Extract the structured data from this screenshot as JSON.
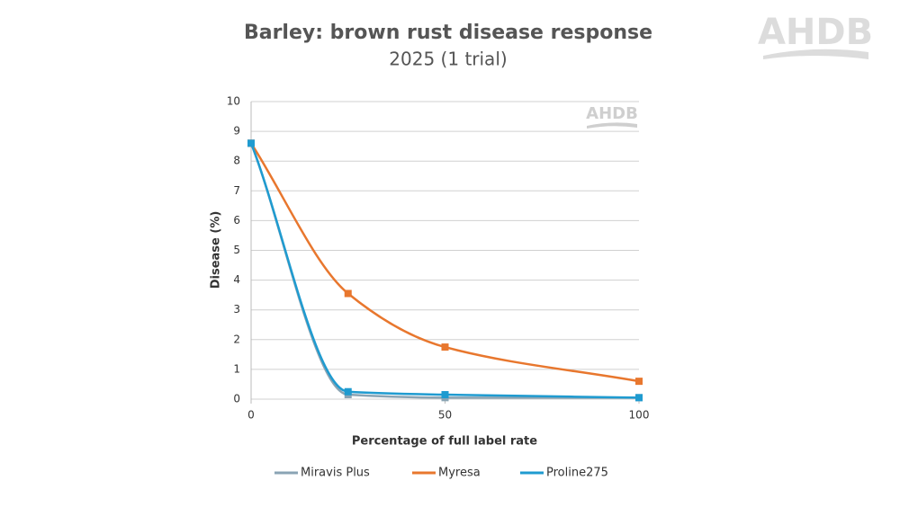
{
  "chart_data": {
    "type": "scatter",
    "title": "Barley: brown rust disease response",
    "subtitle": "2025 (1 trial)",
    "logo": "AHDB",
    "watermark": "AHDB",
    "x_label": "Percentage of full label rate",
    "y_label": "Disease (%)",
    "x": [
      0,
      25,
      50,
      100
    ],
    "series": [
      {
        "name": "Miravis Plus",
        "color": "#8aa4b4",
        "values": [
          8.6,
          0.15,
          0.05,
          0.05
        ]
      },
      {
        "name": "Myresa",
        "color": "#e8772e",
        "values": [
          8.6,
          3.55,
          1.75,
          0.6
        ]
      },
      {
        "name": "Proline275",
        "color": "#1f9bd0",
        "values": [
          8.6,
          0.25,
          0.15,
          0.05
        ]
      }
    ],
    "xlim": [
      0,
      100
    ],
    "xticks": [
      0,
      50,
      100
    ],
    "ylim": [
      0,
      10
    ],
    "yticks": [
      0,
      1,
      2,
      3,
      4,
      5,
      6,
      7,
      8,
      9,
      10
    ],
    "grid": true
  }
}
